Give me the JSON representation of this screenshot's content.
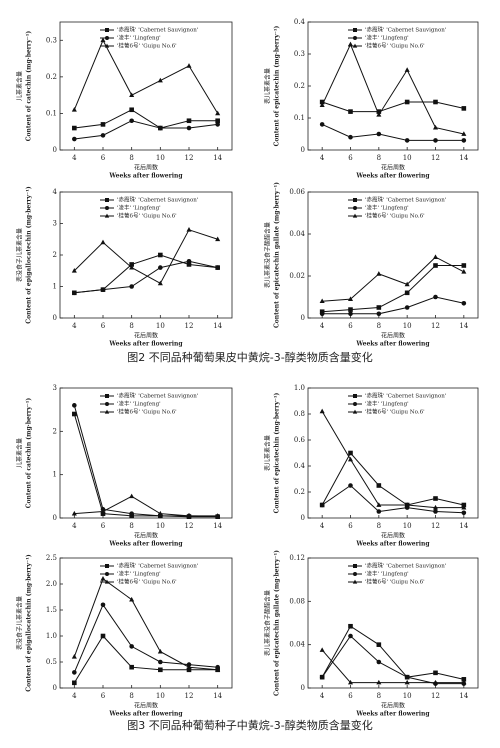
{
  "captions": [
    "图2  不同品种葡萄果皮中黄烷-3-醇类物质含量变化",
    "图3  不同品种葡萄种子中黄烷-3-醇类物质含量变化"
  ],
  "chart_data": [
    {
      "type": "line",
      "ylabel_cn": "儿茶素含量",
      "ylabel": "Content of catechin (mg·berry⁻¹)",
      "xlabel_cn": "花后周数",
      "xlabel": "Weeks after flowering",
      "x": [
        4,
        6,
        8,
        10,
        12,
        14
      ],
      "xlim": [
        3,
        15
      ],
      "xticks": [
        4,
        6,
        8,
        10,
        12,
        14
      ],
      "ylim": [
        0,
        0.35
      ],
      "yticks": [
        0,
        0.1,
        0.2,
        0.3
      ],
      "series": [
        {
          "name": "'赤霞珠' 'Cabernet Sauvignon'",
          "color": "#111",
          "marker": "square",
          "values": [
            0.06,
            0.07,
            0.11,
            0.06,
            0.08,
            0.08
          ]
        },
        {
          "name": "'凌丰' 'Lingfeng'",
          "color": "#111",
          "marker": "circle",
          "values": [
            0.03,
            0.04,
            0.08,
            0.06,
            0.06,
            0.07
          ]
        },
        {
          "name": "'桂葡6号' 'Guipu No.6'",
          "color": "#111",
          "marker": "triangle",
          "values": [
            0.11,
            0.3,
            0.15,
            0.19,
            0.23,
            0.1
          ]
        }
      ]
    },
    {
      "type": "line",
      "ylabel_cn": "表儿茶素含量",
      "ylabel": "Content of epicatechin (mg·berry⁻¹)",
      "xlabel_cn": "花后周数",
      "xlabel": "Weeks after flowering",
      "x": [
        4,
        6,
        8,
        10,
        12,
        14
      ],
      "xlim": [
        3,
        15
      ],
      "xticks": [
        4,
        6,
        8,
        10,
        12,
        14
      ],
      "ylim": [
        0,
        0.4
      ],
      "yticks": [
        0,
        0.1,
        0.2,
        0.3,
        0.4
      ],
      "series": [
        {
          "name": "'赤霞珠' 'Cabernet Sauvignon'",
          "color": "#111",
          "marker": "square",
          "values": [
            0.15,
            0.12,
            0.12,
            0.15,
            0.15,
            0.13
          ]
        },
        {
          "name": "'凌丰' 'Lingfeng'",
          "color": "#111",
          "marker": "circle",
          "values": [
            0.08,
            0.04,
            0.05,
            0.03,
            0.03,
            0.03
          ]
        },
        {
          "name": "'桂葡6号' 'Guipu No.6'",
          "color": "#111",
          "marker": "triangle",
          "values": [
            0.14,
            0.33,
            0.11,
            0.25,
            0.07,
            0.05
          ]
        }
      ]
    },
    {
      "type": "line",
      "ylabel_cn": "表没食子儿茶素含量",
      "ylabel": "Content of epigallocatechin (mg·berry⁻¹)",
      "xlabel_cn": "花后周数",
      "xlabel": "Weeks after flowering",
      "x": [
        4,
        6,
        8,
        10,
        12,
        14
      ],
      "xlim": [
        3,
        15
      ],
      "xticks": [
        4,
        6,
        8,
        10,
        12,
        14
      ],
      "ylim": [
        0,
        4
      ],
      "yticks": [
        0,
        1,
        2,
        3,
        4
      ],
      "series": [
        {
          "name": "'赤霞珠' 'Cabernet Sauvignon'",
          "color": "#111",
          "marker": "square",
          "values": [
            0.8,
            0.9,
            1.7,
            2.0,
            1.7,
            1.6
          ]
        },
        {
          "name": "'凌丰' 'Lingfeng'",
          "color": "#111",
          "marker": "circle",
          "values": [
            0.8,
            0.9,
            1.0,
            1.6,
            1.8,
            1.6
          ]
        },
        {
          "name": "'桂葡6号' 'Guipu No.6'",
          "color": "#111",
          "marker": "triangle",
          "values": [
            1.5,
            2.4,
            1.6,
            1.1,
            2.8,
            2.5
          ]
        }
      ]
    },
    {
      "type": "line",
      "ylabel_cn": "表儿茶素没食子酸酯含量",
      "ylabel": "Content of epicatechin gallate (mg·berry⁻¹)",
      "xlabel_cn": "花后周数",
      "xlabel": "Weeks after flowering",
      "x": [
        4,
        6,
        8,
        10,
        12,
        14
      ],
      "xlim": [
        3,
        15
      ],
      "xticks": [
        4,
        6,
        8,
        10,
        12,
        14
      ],
      "ylim": [
        0,
        0.06
      ],
      "yticks": [
        0,
        0.02,
        0.04,
        0.06
      ],
      "series": [
        {
          "name": "'赤霞珠' 'Cabernet Sauvignon'",
          "color": "#111",
          "marker": "square",
          "values": [
            0.003,
            0.004,
            0.005,
            0.012,
            0.025,
            0.025
          ]
        },
        {
          "name": "'凌丰' 'Lingfeng'",
          "color": "#111",
          "marker": "circle",
          "values": [
            0.002,
            0.002,
            0.002,
            0.005,
            0.01,
            0.007
          ]
        },
        {
          "name": "'桂葡6号' 'Guipu No.6'",
          "color": "#111",
          "marker": "triangle",
          "values": [
            0.008,
            0.009,
            0.021,
            0.016,
            0.029,
            0.022
          ]
        }
      ]
    },
    {
      "type": "line",
      "ylabel_cn": "儿茶素含量",
      "ylabel": "Content of catechin (mg·berry⁻¹)",
      "xlabel_cn": "花后周数",
      "xlabel": "Weeks after flowering",
      "x": [
        4,
        6,
        8,
        10,
        12,
        14
      ],
      "xlim": [
        3,
        15
      ],
      "xticks": [
        4,
        6,
        8,
        10,
        12,
        14
      ],
      "ylim": [
        0,
        3
      ],
      "yticks": [
        0,
        1,
        2,
        3
      ],
      "series": [
        {
          "name": "'赤霞珠' 'Cabernet Sauvignon'",
          "color": "#111",
          "marker": "square",
          "values": [
            2.4,
            0.1,
            0.05,
            0.05,
            0.03,
            0.03
          ]
        },
        {
          "name": "'凌丰' 'Lingfeng'",
          "color": "#111",
          "marker": "circle",
          "values": [
            2.6,
            0.2,
            0.1,
            0.05,
            0.05,
            0.04
          ]
        },
        {
          "name": "'桂葡6号' 'Guipu No.6'",
          "color": "#111",
          "marker": "triangle",
          "values": [
            0.1,
            0.15,
            0.5,
            0.1,
            0.05,
            0.05
          ]
        }
      ]
    },
    {
      "type": "line",
      "ylabel_cn": "表儿茶素含量",
      "ylabel": "Content of epicatechin (mg·berry⁻¹)",
      "xlabel_cn": "花后周数",
      "xlabel": "Weeks after flowering",
      "x": [
        4,
        6,
        8,
        10,
        12,
        14
      ],
      "xlim": [
        3,
        15
      ],
      "xticks": [
        4,
        6,
        8,
        10,
        12,
        14
      ],
      "ylim": [
        0,
        1
      ],
      "yticks": [
        0,
        0.2,
        0.4,
        0.6,
        0.8,
        {
          "value": 1,
          "label": "1.0"
        }
      ],
      "series": [
        {
          "name": "'赤霞珠' 'Cabernet Sauvignon'",
          "color": "#111",
          "marker": "square",
          "values": [
            0.1,
            0.5,
            0.25,
            0.1,
            0.15,
            0.1
          ]
        },
        {
          "name": "'凌丰' 'Lingfeng'",
          "color": "#111",
          "marker": "circle",
          "values": [
            0.1,
            0.25,
            0.05,
            0.08,
            0.05,
            0.04
          ]
        },
        {
          "name": "'桂葡6号' 'Guipu No.6'",
          "color": "#111",
          "marker": "triangle",
          "values": [
            0.82,
            0.45,
            0.1,
            0.1,
            0.08,
            0.08
          ]
        }
      ]
    },
    {
      "type": "line",
      "ylabel_cn": "表没食子儿茶素含量",
      "ylabel": "Content of epigallocatechin (mg·berry⁻¹)",
      "xlabel_cn": "花后周数",
      "xlabel": "Weeks after flowering",
      "x": [
        4,
        6,
        8,
        10,
        12,
        14
      ],
      "xlim": [
        3,
        15
      ],
      "xticks": [
        4,
        6,
        8,
        10,
        12,
        14
      ],
      "ylim": [
        0,
        2.5
      ],
      "yticks": [
        0,
        0.5,
        {
          "value": 1,
          "label": "1.0"
        },
        1.5,
        {
          "value": 2,
          "label": "2.0"
        },
        2.5
      ],
      "series": [
        {
          "name": "'赤霞珠' 'Cabernet Sauvignon'",
          "color": "#111",
          "marker": "square",
          "values": [
            0.1,
            1.0,
            0.4,
            0.35,
            0.35,
            0.35
          ]
        },
        {
          "name": "'凌丰' 'Lingfeng'",
          "color": "#111",
          "marker": "circle",
          "values": [
            0.3,
            1.6,
            0.8,
            0.5,
            0.45,
            0.4
          ]
        },
        {
          "name": "'桂葡6号' 'Guipu No.6'",
          "color": "#111",
          "marker": "triangle",
          "values": [
            0.6,
            2.1,
            1.7,
            0.7,
            0.4,
            0.35
          ]
        }
      ]
    },
    {
      "type": "line",
      "ylabel_cn": "表儿茶素没食子酸酯含量",
      "ylabel": "Content of epicatechin gallate (mg·berry⁻¹)",
      "xlabel_cn": "花后周数",
      "xlabel": "Weeks after flowering",
      "x": [
        4,
        6,
        8,
        10,
        12,
        14
      ],
      "xlim": [
        3,
        15
      ],
      "xticks": [
        4,
        6,
        8,
        10,
        12,
        14
      ],
      "ylim": [
        0,
        0.12
      ],
      "yticks": [
        0,
        0.04,
        0.08,
        0.12
      ],
      "series": [
        {
          "name": "'赤霞珠' 'Cabernet Sauvignon'",
          "color": "#111",
          "marker": "square",
          "values": [
            0.01,
            0.057,
            0.04,
            0.01,
            0.014,
            0.008
          ]
        },
        {
          "name": "'凌丰' 'Lingfeng'",
          "color": "#111",
          "marker": "circle",
          "values": [
            0.01,
            0.048,
            0.024,
            0.01,
            0.004,
            0.004
          ]
        },
        {
          "name": "'桂葡6号' 'Guipu No.6'",
          "color": "#111",
          "marker": "triangle",
          "values": [
            0.035,
            0.005,
            0.005,
            0.005,
            0.005,
            0.005
          ]
        }
      ]
    }
  ]
}
